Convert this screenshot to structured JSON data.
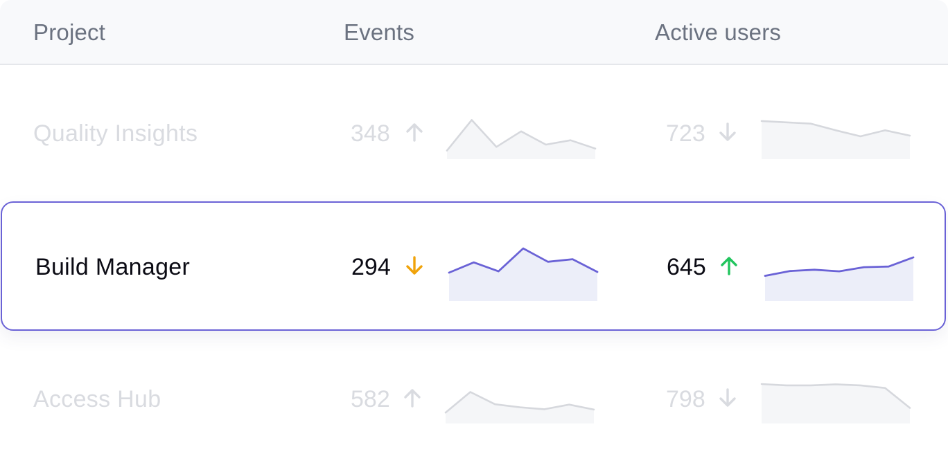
{
  "header": {
    "project": "Project",
    "events": "Events",
    "active_users": "Active users"
  },
  "rows": [
    {
      "name": "Quality Insights",
      "state": "faded",
      "events": {
        "value": "348",
        "trend": "up",
        "spark": [
          0.05,
          0.97,
          0.16,
          0.63,
          0.23,
          0.36,
          0.11
        ]
      },
      "users": {
        "value": "723",
        "trend": "down",
        "spark": [
          0.94,
          0.9,
          0.86,
          0.66,
          0.48,
          0.66,
          0.5
        ]
      }
    },
    {
      "name": "Build Manager",
      "state": "active",
      "events": {
        "value": "294",
        "trend": "down",
        "spark": [
          0.24,
          0.56,
          0.28,
          1.0,
          0.58,
          0.66,
          0.26
        ]
      },
      "users": {
        "value": "645",
        "trend": "up",
        "spark": [
          0.14,
          0.29,
          0.33,
          0.28,
          0.41,
          0.43,
          0.72
        ]
      }
    },
    {
      "name": "Access Hub",
      "state": "faded",
      "events": {
        "value": "582",
        "trend": "up",
        "spark": [
          0.12,
          0.74,
          0.37,
          0.28,
          0.22,
          0.36,
          0.21
        ]
      },
      "users": {
        "value": "798",
        "trend": "down",
        "spark": [
          0.98,
          0.94,
          0.94,
          0.97,
          0.94,
          0.86,
          0.26
        ]
      }
    }
  ],
  "colors": {
    "accent": "#6a62d6",
    "fill": "#eceef9",
    "muted_line": "#d6d8dd",
    "muted_fill": "#f5f6f8",
    "up": "#22c55e",
    "down": "#f0a30a",
    "muted_arrow": "#d9dbe0"
  }
}
